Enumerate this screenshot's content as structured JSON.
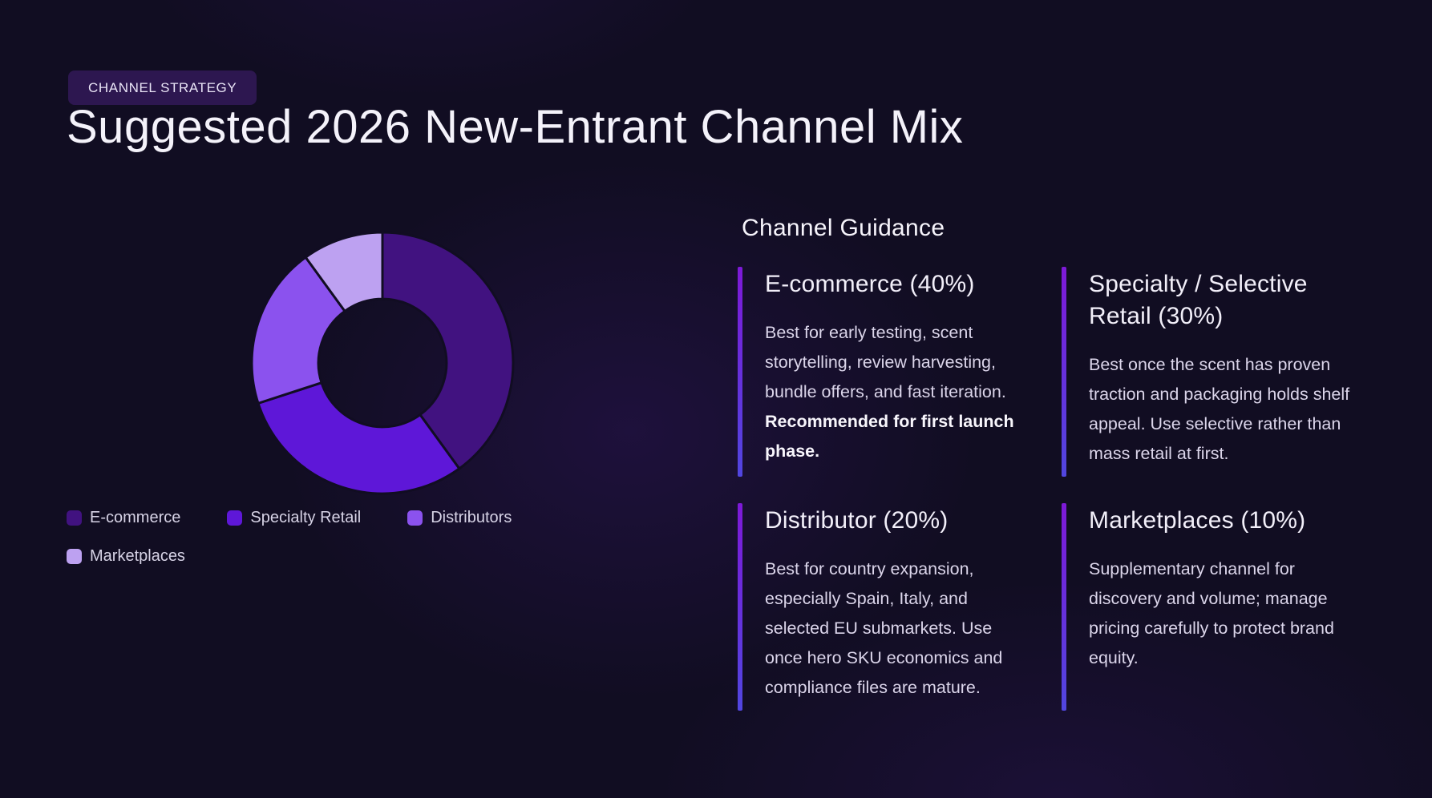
{
  "badge": {
    "label": "CHANNEL STRATEGY"
  },
  "title": "Suggested 2026 New-Entrant Channel Mix",
  "colors": {
    "background": "#110d22",
    "badge_background": "#2d1750",
    "accent_bar_top": "#7e19d8",
    "accent_bar_bottom": "#5146e0"
  },
  "chart_data": {
    "type": "pie",
    "subtype": "donut",
    "title": "Suggested 2026 New-Entrant Channel Mix",
    "categories": [
      "E-commerce",
      "Specialty Retail",
      "Distributors",
      "Marketplaces"
    ],
    "values": [
      40,
      30,
      20,
      10
    ],
    "unit": "%",
    "colors": [
      "#411280",
      "#5e17d8",
      "#8b52ee",
      "#bda1f1"
    ],
    "start_angle_deg": 0,
    "direction": "clockwise",
    "inner_radius_ratio": 0.49,
    "slice_gap_stroke": "#110d22",
    "legend_position": "bottom-left"
  },
  "legend": {
    "items": [
      {
        "label": "E-commerce",
        "color": "#411280"
      },
      {
        "label": "Specialty Retail",
        "color": "#5e17d8"
      },
      {
        "label": "Distributors",
        "color": "#8b52ee"
      },
      {
        "label": "Marketplaces",
        "color": "#bda1f1"
      }
    ]
  },
  "guidance": {
    "heading": "Channel Guidance",
    "cards": [
      {
        "title": "E-commerce (40%)",
        "body": "Best for early testing, scent storytelling, review harvesting, bundle offers, and fast iteration. ",
        "body_bold": "Recommended for first launch phase."
      },
      {
        "title": "Specialty / Selective Retail (30%)",
        "body": "Best once the scent has proven traction and packaging holds shelf appeal. Use selective rather than mass retail at first.",
        "body_bold": ""
      },
      {
        "title": "Distributor (20%)",
        "body": "Best for country expansion, especially Spain, Italy, and selected EU submarkets. Use once hero SKU economics and compliance files are mature.",
        "body_bold": ""
      },
      {
        "title": "Marketplaces (10%)",
        "body": "Supplementary channel for discovery and volume; manage pricing carefully to protect brand equity.",
        "body_bold": ""
      }
    ]
  }
}
